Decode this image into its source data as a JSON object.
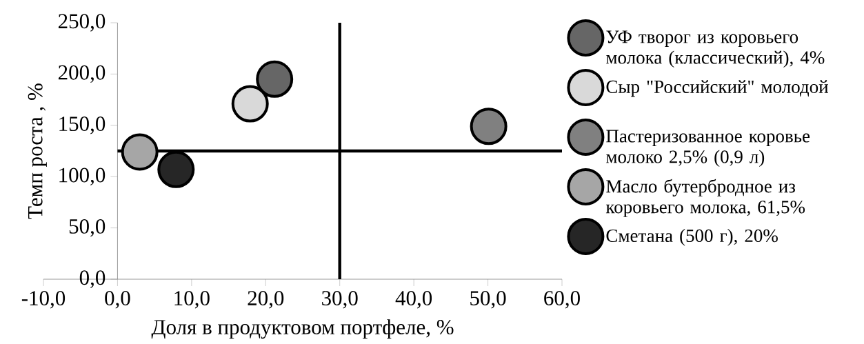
{
  "chart_data": {
    "type": "scatter",
    "xlabel": "Доля в продуктовом портфеле, %",
    "ylabel": "Темп роста , %",
    "xlim": [
      -10,
      60
    ],
    "ylim": [
      0,
      250
    ],
    "xticks": [
      {
        "value": -10,
        "label": "-10,0"
      },
      {
        "value": 0,
        "label": "0,0"
      },
      {
        "value": 10,
        "label": "10,0"
      },
      {
        "value": 20,
        "label": "20,0"
      },
      {
        "value": 30,
        "label": "30,0"
      },
      {
        "value": 40,
        "label": "40,0"
      },
      {
        "value": 50,
        "label": "50,0"
      },
      {
        "value": 60,
        "label": "60,0"
      }
    ],
    "yticks": [
      {
        "value": 0,
        "label": "0,0"
      },
      {
        "value": 50,
        "label": "50,0"
      },
      {
        "value": 100,
        "label": "100,0"
      },
      {
        "value": 150,
        "label": "150,0"
      },
      {
        "value": 200,
        "label": "200,0"
      },
      {
        "value": 250,
        "label": "250,0"
      }
    ],
    "marker": "circle",
    "legend": "right",
    "ref_lines": [
      {
        "axis": "x",
        "value": 30,
        "color": "#000000"
      },
      {
        "axis": "y",
        "value": 125,
        "color": "#000000"
      }
    ],
    "series": [
      {
        "name": "УФ творог из коровьего молока (классический), 4%",
        "color": "#666666",
        "x": [
          21.2
        ],
        "values": [
          195
        ]
      },
      {
        "name": "Сыр \"Российский\" молодой",
        "color": "#d9d9d9",
        "x": [
          17.9
        ],
        "values": [
          171
        ]
      },
      {
        "name": "Пастеризованное коровье молоко 2,5%  (0,9 л)",
        "color": "#808080",
        "x": [
          50.1
        ],
        "values": [
          149
        ]
      },
      {
        "name": "Масло бутербродное из коровьего молока, 61,5%",
        "color": "#a6a6a6",
        "x": [
          3.0
        ],
        "values": [
          124
        ]
      },
      {
        "name": "Сметана (500 г), 20%",
        "color": "#262626",
        "x": [
          7.9
        ],
        "values": [
          107
        ]
      }
    ]
  }
}
